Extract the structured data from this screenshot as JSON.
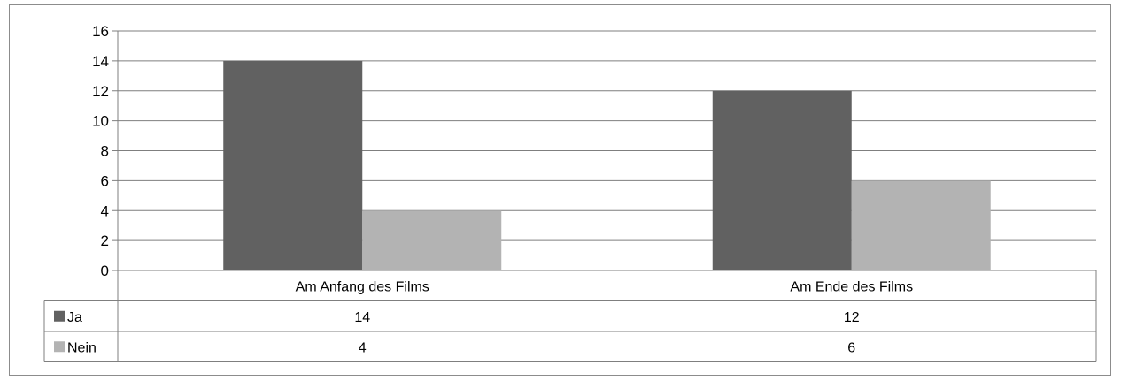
{
  "chart_data": {
    "type": "bar",
    "categories": [
      "Am Anfang des Films",
      "Am Ende des Films"
    ],
    "series": [
      {
        "name": "Ja",
        "values": [
          14,
          12
        ],
        "color": "#616161"
      },
      {
        "name": "Nein",
        "values": [
          4,
          6
        ],
        "color": "#b3b3b3"
      }
    ],
    "ylim": [
      0,
      16
    ],
    "yticks": [
      0,
      2,
      4,
      6,
      8,
      10,
      12,
      14,
      16
    ],
    "grid": true,
    "legend": "data-table-left",
    "title": "",
    "xlabel": "",
    "ylabel": ""
  }
}
